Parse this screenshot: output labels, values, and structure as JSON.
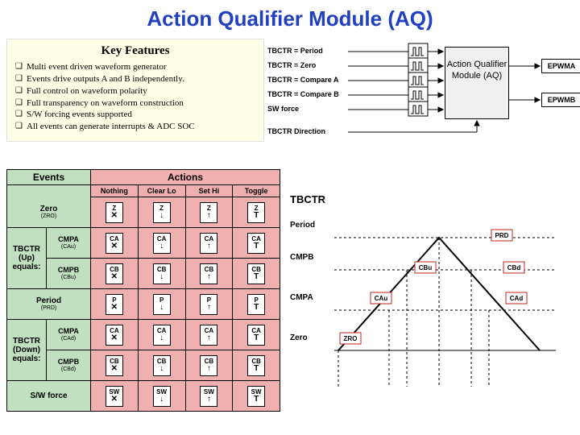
{
  "title": "Action Qualifier Module (AQ)",
  "features": {
    "heading": "Key Features",
    "items": [
      "Multi event driven waveform generator",
      "Events drive outputs A and B independently.",
      "Full control on waveform polarity",
      "Full transparency on waveform construction",
      "S/W forcing events supported",
      "All events can generate interrupts & ADC SOC"
    ]
  },
  "block": {
    "inputs": [
      "TBCTR = Period",
      "TBCTR = Zero",
      "TBCTR = Compare A",
      "TBCTR = Compare B",
      "SW force",
      "TBCTR Direction"
    ],
    "box_label": "Action Qualifier Module (AQ)",
    "outputs": [
      "EPWMA",
      "EPWMB"
    ]
  },
  "table": {
    "events_header": "Events",
    "actions_header": "Actions",
    "action_cols": [
      "Nothing",
      "Clear Lo",
      "Set Hi",
      "Toggle"
    ],
    "rows": [
      {
        "type": "single",
        "label": "Zero",
        "sub": "(ZRO)",
        "code": "Z",
        "span": 1
      },
      {
        "type": "group",
        "group": "TBCTR (Up) equals:",
        "label": "CMPA",
        "sub": "(CAu)",
        "code": "CA"
      },
      {
        "type": "group_cont",
        "label": "CMPB",
        "sub": "(CBu)",
        "code": "CB"
      },
      {
        "type": "single",
        "label": "Period",
        "sub": "(PRD)",
        "code": "P",
        "span": 1
      },
      {
        "type": "group",
        "group": "TBCTR (Down) equals:",
        "label": "CMPA",
        "sub": "(CAd)",
        "code": "CA"
      },
      {
        "type": "group_cont",
        "label": "CMPB",
        "sub": "(CBd)",
        "code": "CB"
      },
      {
        "type": "single",
        "label": "S/W force",
        "sub": "",
        "code": "SW",
        "span": 1
      }
    ],
    "symbols": [
      "✕",
      "↓",
      "↑",
      "T"
    ]
  },
  "waveform": {
    "title": "TBCTR",
    "y_labels": [
      "Period",
      "CMPB",
      "CMPA",
      "Zero"
    ],
    "event_labels": [
      "PRD",
      "CBu",
      "CBd",
      "CAu",
      "CAd",
      "ZRO"
    ],
    "colors": {
      "line": "#000000",
      "dash": "#000000",
      "box_border": "#c02020",
      "box_fill": "#ffffff"
    },
    "triangle": {
      "x": [
        20,
        170,
        320
      ],
      "y": [
        180,
        40,
        180
      ]
    }
  },
  "colors": {
    "title": "#2040c0",
    "features_bg": "#ffffe8",
    "events_bg": "#c0e0c0",
    "actions_bg": "#f0b0b0",
    "block_bg": "#f0f0f0"
  }
}
